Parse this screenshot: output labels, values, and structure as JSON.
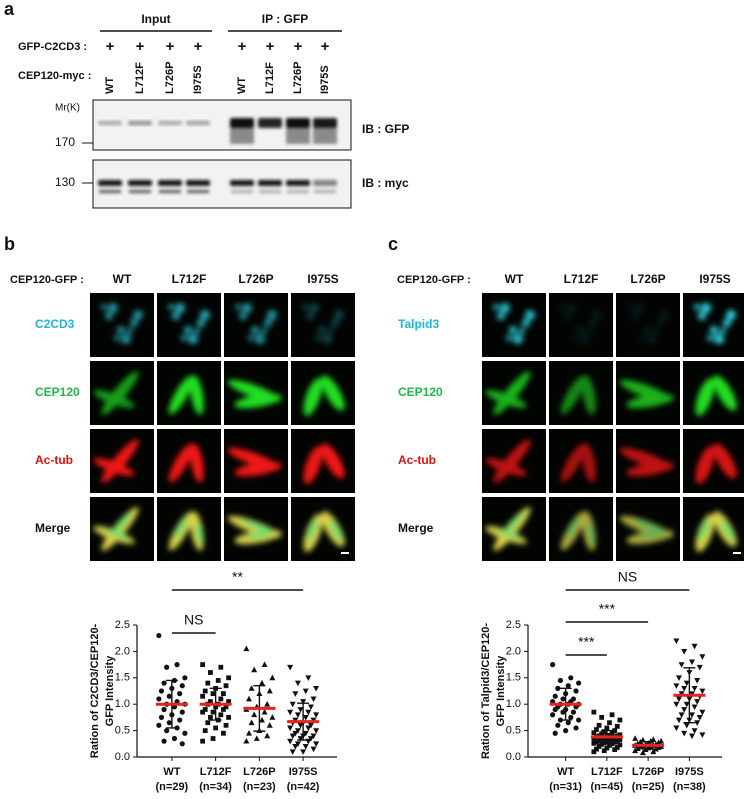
{
  "panel_a": {
    "label": "a",
    "headers": [
      "Input",
      "IP : GFP"
    ],
    "row_labels": [
      "GFP-C2CD3 :",
      "CEP120-myc :"
    ],
    "plus_signs": [
      "+",
      "+",
      "+",
      "+",
      "+",
      "+",
      "+",
      "+"
    ],
    "lanes": [
      "WT",
      "L712F",
      "L726P",
      "I975S",
      "WT",
      "L712F",
      "L726P",
      "I975S"
    ],
    "size_markers": [
      "Mr(K)",
      "170",
      "130"
    ],
    "blots": [
      "IB : GFP",
      "IB : myc"
    ]
  },
  "panel_b": {
    "label": "b",
    "header_label": "CEP120-GFP :",
    "columns": [
      "WT",
      "L712F",
      "L726P",
      "I975S"
    ],
    "rows": [
      "C2CD3",
      "CEP120",
      "Ac-tub",
      "Merge"
    ]
  },
  "panel_c": {
    "label": "c",
    "header_label": "CEP120-GFP :",
    "columns": [
      "WT",
      "L712F",
      "L726P",
      "I975S"
    ],
    "rows": [
      "Talpid3",
      "CEP120",
      "Ac-tub",
      "Merge"
    ]
  },
  "chart_data": [
    {
      "type": "dotplot",
      "ylabel": [
        "Ration of C2CD3/CEP120-",
        "GFP Intensity"
      ],
      "categories": [
        "WT",
        "L712F",
        "L726P",
        "I975S"
      ],
      "n_labels": [
        "(n=29)",
        "(n=34)",
        "(n=23)",
        "(n=42)"
      ],
      "markers": [
        "circle",
        "square",
        "triangle",
        "triangle-down"
      ],
      "points": [
        [
          2.3,
          1.75,
          1.7,
          1.5,
          1.45,
          1.4,
          1.35,
          1.3,
          1.25,
          1.2,
          1.15,
          1.1,
          1.05,
          1.0,
          1.0,
          0.95,
          0.9,
          0.85,
          0.8,
          0.75,
          0.7,
          0.65,
          0.6,
          0.55,
          0.5,
          0.45,
          0.35,
          0.3,
          0.25
        ],
        [
          1.75,
          1.7,
          1.6,
          1.5,
          1.45,
          1.4,
          1.35,
          1.3,
          1.25,
          1.2,
          1.2,
          1.15,
          1.1,
          1.05,
          1.05,
          1.0,
          1.0,
          0.95,
          0.95,
          0.9,
          0.9,
          0.85,
          0.85,
          0.8,
          0.75,
          0.75,
          0.7,
          0.65,
          0.6,
          0.55,
          0.5,
          0.45,
          0.35,
          0.3
        ],
        [
          2.05,
          1.75,
          1.65,
          1.5,
          1.4,
          1.3,
          1.25,
          1.2,
          1.1,
          1.0,
          0.95,
          0.9,
          0.85,
          0.8,
          0.75,
          0.7,
          0.65,
          0.6,
          0.5,
          0.45,
          0.4,
          0.35,
          0.3
        ],
        [
          1.7,
          1.5,
          1.4,
          1.3,
          1.25,
          1.2,
          1.1,
          1.05,
          1.0,
          0.95,
          0.9,
          0.85,
          0.85,
          0.8,
          0.8,
          0.75,
          0.7,
          0.7,
          0.65,
          0.65,
          0.6,
          0.6,
          0.55,
          0.55,
          0.5,
          0.5,
          0.45,
          0.45,
          0.4,
          0.4,
          0.4,
          0.35,
          0.35,
          0.3,
          0.3,
          0.25,
          0.25,
          0.2,
          0.2,
          0.15,
          0.1,
          0.1
        ]
      ],
      "mean": [
        1.0,
        1.0,
        0.92,
        0.67
      ],
      "sd": [
        0.45,
        0.3,
        0.43,
        0.35
      ],
      "mean_color": "#e8231f",
      "annotations": [
        "NS",
        "**"
      ],
      "ylim": [
        0,
        2.5
      ],
      "yticks": [
        {
          "value": 0,
          "label": "0.0"
        },
        0.5,
        {
          "value": 1,
          "label": "1.0"
        },
        1.5,
        {
          "value": 2,
          "label": "2.0"
        },
        2.5
      ]
    },
    {
      "type": "dotplot",
      "ylabel": [
        "Ration of Talpid3/CEP120-",
        "GFP Intensity"
      ],
      "categories": [
        "WT",
        "L712F",
        "L726P",
        "I975S"
      ],
      "n_labels": [
        "(n=31)",
        "(n=45)",
        "(n=25)",
        "(n=38)"
      ],
      "markers": [
        "circle",
        "square",
        "triangle",
        "triangle-down"
      ],
      "points": [
        [
          1.75,
          1.5,
          1.45,
          1.4,
          1.35,
          1.3,
          1.25,
          1.2,
          1.15,
          1.1,
          1.1,
          1.05,
          1.05,
          1.0,
          1.0,
          1.0,
          0.95,
          0.95,
          0.9,
          0.9,
          0.85,
          0.85,
          0.8,
          0.75,
          0.7,
          0.7,
          0.65,
          0.6,
          0.55,
          0.5,
          0.45
        ],
        [
          0.85,
          0.8,
          0.75,
          0.7,
          0.65,
          0.6,
          0.58,
          0.55,
          0.52,
          0.5,
          0.48,
          0.46,
          0.45,
          0.44,
          0.42,
          0.41,
          0.4,
          0.4,
          0.39,
          0.38,
          0.37,
          0.36,
          0.35,
          0.35,
          0.34,
          0.33,
          0.32,
          0.31,
          0.3,
          0.3,
          0.29,
          0.28,
          0.27,
          0.26,
          0.25,
          0.24,
          0.23,
          0.22,
          0.2,
          0.18,
          0.17,
          0.15,
          0.14,
          0.12,
          0.1
        ],
        [
          0.35,
          0.33,
          0.32,
          0.3,
          0.3,
          0.28,
          0.27,
          0.26,
          0.25,
          0.24,
          0.23,
          0.22,
          0.22,
          0.21,
          0.2,
          0.2,
          0.19,
          0.18,
          0.17,
          0.16,
          0.15,
          0.14,
          0.12,
          0.1,
          0.08
        ],
        [
          2.2,
          2.1,
          2.0,
          1.9,
          1.8,
          1.75,
          1.7,
          1.6,
          1.5,
          1.45,
          1.4,
          1.35,
          1.3,
          1.3,
          1.25,
          1.2,
          1.2,
          1.15,
          1.1,
          1.1,
          1.05,
          1.0,
          1.0,
          0.95,
          0.9,
          0.85,
          0.8,
          0.8,
          0.75,
          0.7,
          0.7,
          0.65,
          0.6,
          0.55,
          0.5,
          0.45,
          0.42,
          0.4
        ]
      ],
      "mean": [
        1.0,
        0.38,
        0.22,
        1.17
      ],
      "sd": [
        0.3,
        0.12,
        0.07,
        0.52
      ],
      "mean_color": "#e8231f",
      "annotations": [
        "NS",
        "***",
        "***"
      ],
      "ylim": [
        0,
        2.5
      ],
      "yticks": [
        {
          "value": 0,
          "label": "0.0"
        },
        0.5,
        {
          "value": 1,
          "label": "1.0"
        },
        1.5,
        {
          "value": 2,
          "label": "2.0"
        },
        2.5
      ]
    }
  ]
}
